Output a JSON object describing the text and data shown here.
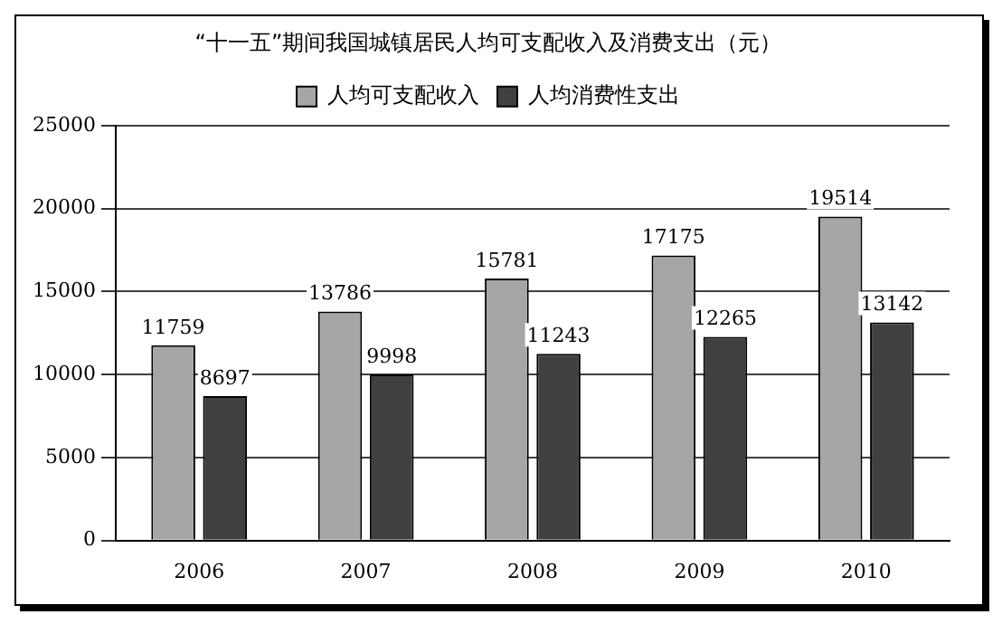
{
  "chart_data": {
    "type": "bar",
    "title": "“十一五”期间我国城镇居民人均可支配收入及消费支出（元）",
    "categories": [
      "2006",
      "2007",
      "2008",
      "2009",
      "2010"
    ],
    "series": [
      {
        "name": "人均可支配收入",
        "color": "#a6a6a6",
        "values": [
          11759,
          13786,
          15781,
          17175,
          19514
        ]
      },
      {
        "name": "人均消费性支出",
        "color": "#404040",
        "values": [
          8697,
          9998,
          11243,
          12265,
          13142
        ]
      }
    ],
    "ylim": [
      0,
      25000
    ],
    "yticks": [
      0,
      5000,
      10000,
      15000,
      20000,
      25000
    ],
    "grid": "y",
    "legend": "top",
    "data_labels": true
  }
}
